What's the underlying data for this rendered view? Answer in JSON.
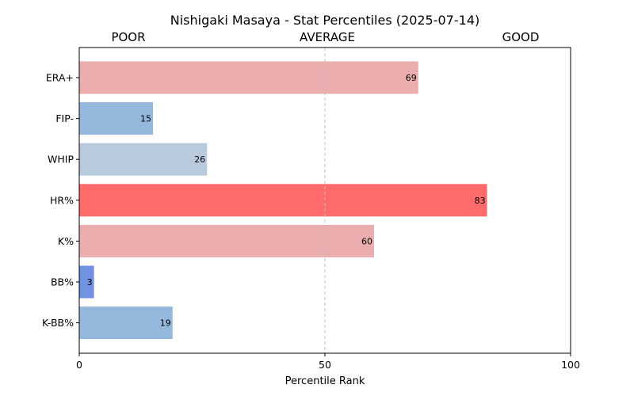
{
  "chart_data": {
    "type": "bar",
    "orientation": "horizontal",
    "title": "Nishigaki Masaya - Stat Percentiles (2025-07-14)",
    "zone_labels": [
      "POOR",
      "AVERAGE",
      "GOOD"
    ],
    "xlabel": "Percentile Rank",
    "xlim": [
      0,
      100
    ],
    "xticks": [
      0,
      50,
      100
    ],
    "reference_line": 50,
    "categories": [
      "ERA+",
      "FIP-",
      "WHIP",
      "HR%",
      "K%",
      "BB%",
      "K-BB%"
    ],
    "values": [
      69,
      15,
      26,
      83,
      60,
      3,
      19
    ],
    "bar_colors": [
      "#ebadad",
      "#94b8dc",
      "#b8cadc",
      "#ff6b6b",
      "#ebadad",
      "#7092e0",
      "#94b8dc"
    ]
  }
}
